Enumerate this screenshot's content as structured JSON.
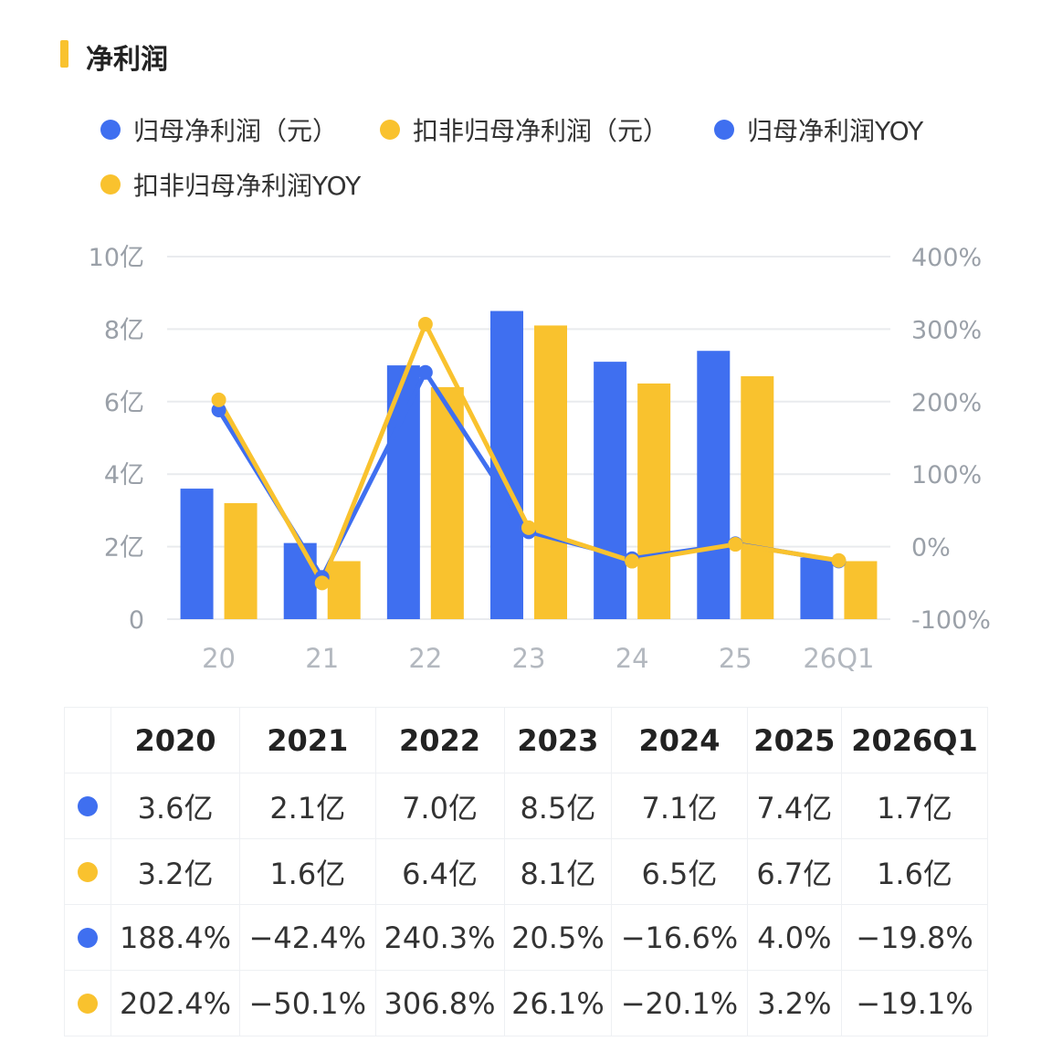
{
  "title": "净利润",
  "colors": {
    "blue": "#3F6FF0",
    "yellow": "#F9C22E",
    "accent": "#F9C22E",
    "grid": "#e9ebee",
    "axis_text": "#9aa0a8"
  },
  "legend": [
    {
      "label": "归母净利润（元）",
      "color": "#3F6FF0"
    },
    {
      "label": "扣非归母净利润（元）",
      "color": "#F9C22E"
    },
    {
      "label": "归母净利润YOY",
      "color": "#3F6FF0"
    },
    {
      "label": "扣非归母净利润YOY",
      "color": "#F9C22E"
    }
  ],
  "chart_data": {
    "type": "bar",
    "categories": [
      "20",
      "21",
      "22",
      "23",
      "24",
      "25",
      "26Q1"
    ],
    "y_left": {
      "ticks": [
        "0",
        "2亿",
        "4亿",
        "6亿",
        "8亿",
        "10亿"
      ],
      "range": [
        0,
        10
      ],
      "unit": "亿"
    },
    "y_right": {
      "ticks": [
        "-100%",
        "0%",
        "100%",
        "200%",
        "300%",
        "400%"
      ],
      "range": [
        -100,
        400
      ]
    },
    "series": [
      {
        "name": "归母净利润（元）",
        "type": "bar",
        "axis": "left",
        "color": "#3F6FF0",
        "values": [
          3.6,
          2.1,
          7.0,
          8.5,
          7.1,
          7.4,
          1.7
        ]
      },
      {
        "name": "扣非归母净利润（元）",
        "type": "bar",
        "axis": "left",
        "color": "#F9C22E",
        "values": [
          3.2,
          1.6,
          6.4,
          8.1,
          6.5,
          6.7,
          1.6
        ]
      },
      {
        "name": "归母净利润YOY",
        "type": "line",
        "axis": "right",
        "color": "#3F6FF0",
        "values": [
          188.4,
          -42.4,
          240.3,
          20.5,
          -16.6,
          4.0,
          -19.8
        ]
      },
      {
        "name": "扣非归母净利润YOY",
        "type": "line",
        "axis": "right",
        "color": "#F9C22E",
        "values": [
          202.4,
          -50.1,
          306.8,
          26.1,
          -20.1,
          3.2,
          -19.1
        ]
      }
    ],
    "grid": true
  },
  "table": {
    "headers": [
      "2020",
      "2021",
      "2022",
      "2023",
      "2024",
      "2025",
      "2026Q1"
    ],
    "rows": [
      {
        "color": "#3F6FF0",
        "cells": [
          "3.6亿",
          "2.1亿",
          "7.0亿",
          "8.5亿",
          "7.1亿",
          "7.4亿",
          "1.7亿"
        ]
      },
      {
        "color": "#F9C22E",
        "cells": [
          "3.2亿",
          "1.6亿",
          "6.4亿",
          "8.1亿",
          "6.5亿",
          "6.7亿",
          "1.6亿"
        ]
      },
      {
        "color": "#3F6FF0",
        "cells": [
          "188.4%",
          "−42.4%",
          "240.3%",
          "20.5%",
          "−16.6%",
          "4.0%",
          "−19.8%"
        ]
      },
      {
        "color": "#F9C22E",
        "cells": [
          "202.4%",
          "−50.1%",
          "306.8%",
          "26.1%",
          "−20.1%",
          "3.2%",
          "−19.1%"
        ]
      }
    ]
  }
}
